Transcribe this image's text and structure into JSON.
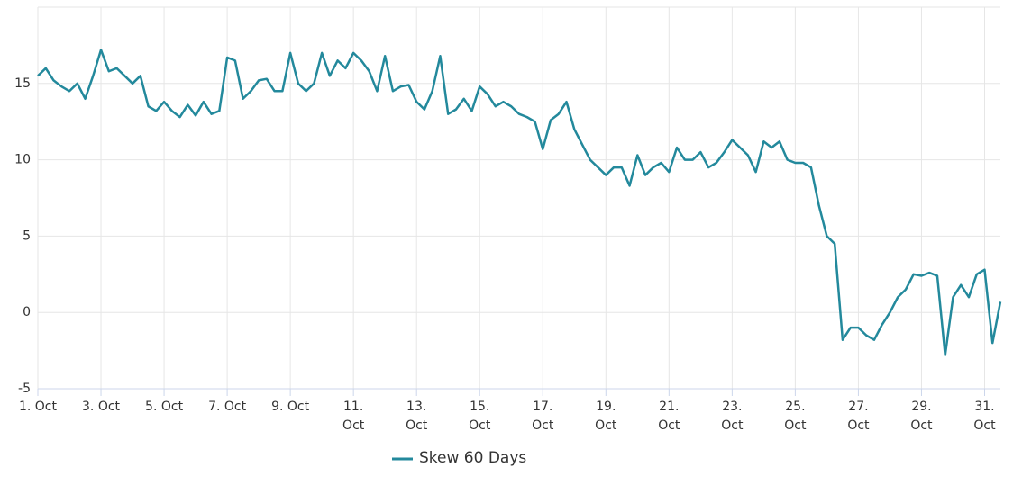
{
  "chart_data": {
    "type": "line",
    "categories": [
      "1. Oct",
      null,
      null,
      null,
      null,
      null,
      null,
      null,
      "3. Oct",
      null,
      null,
      null,
      null,
      null,
      null,
      null,
      "5. Oct",
      null,
      null,
      null,
      null,
      null,
      null,
      null,
      "7. Oct",
      null,
      null,
      null,
      null,
      null,
      null,
      null,
      "9. Oct",
      null,
      null,
      null,
      null,
      null,
      null,
      null,
      "11. Oct",
      null,
      null,
      null,
      null,
      null,
      null,
      null,
      "13. Oct",
      null,
      null,
      null,
      null,
      null,
      null,
      null,
      "15. Oct",
      null,
      null,
      null,
      null,
      null,
      null,
      null,
      "17. Oct",
      null,
      null,
      null,
      null,
      null,
      null,
      null,
      "19. Oct",
      null,
      null,
      null,
      null,
      null,
      null,
      null,
      "21. Oct",
      null,
      null,
      null,
      null,
      null,
      null,
      null,
      "23. Oct",
      null,
      null,
      null,
      null,
      null,
      null,
      null,
      "25. Oct",
      null,
      null,
      null,
      null,
      null,
      null,
      null,
      "27. Oct",
      null,
      null,
      null,
      null,
      null,
      null,
      null,
      "29. Oct",
      null,
      null,
      null,
      null,
      null,
      null,
      null,
      "31. Oct",
      null,
      null
    ],
    "series": [
      {
        "name": "Skew 60 Days",
        "color": "#23899c",
        "values": [
          15.5,
          16,
          15.2,
          14.8,
          14.5,
          15,
          14,
          15.5,
          17.2,
          15.8,
          16,
          15.5,
          15,
          15.5,
          13.5,
          13.2,
          13.8,
          13.2,
          12.8,
          13.6,
          12.9,
          13.8,
          13,
          13.2,
          16.7,
          16.5,
          14,
          14.5,
          15.2,
          15.3,
          14.5,
          14.5,
          17,
          15,
          14.5,
          15,
          17,
          15.5,
          16.5,
          16,
          17,
          16.5,
          15.8,
          14.5,
          16.8,
          14.5,
          14.8,
          14.9,
          13.8,
          13.3,
          14.5,
          16.8,
          13,
          13.3,
          14,
          13.2,
          14.8,
          14.3,
          13.5,
          13.8,
          13.5,
          13,
          12.8,
          12.5,
          10.7,
          12.6,
          13,
          13.8,
          12,
          11,
          10,
          9.5,
          9,
          9.5,
          9.5,
          8.3,
          10.3,
          9,
          9.5,
          9.8,
          9.2,
          10.8,
          10,
          10,
          10.5,
          9.5,
          9.8,
          10.5,
          11.3,
          10.8,
          10.3,
          9.2,
          11.2,
          10.8,
          11.2,
          10,
          9.8,
          9.8,
          9.5,
          7,
          5,
          4.5,
          -1.8,
          -1,
          -1,
          -1.5,
          -1.8,
          -0.8,
          0,
          1,
          1.5,
          2.5,
          2.4,
          2.6,
          2.4,
          -2.8,
          1,
          1.8,
          1,
          2.5,
          2.8,
          -2,
          0.7
        ]
      }
    ],
    "ylim": [
      -5,
      20
    ],
    "yticks": [
      -5,
      0,
      5,
      10,
      15
    ],
    "grid": true
  }
}
